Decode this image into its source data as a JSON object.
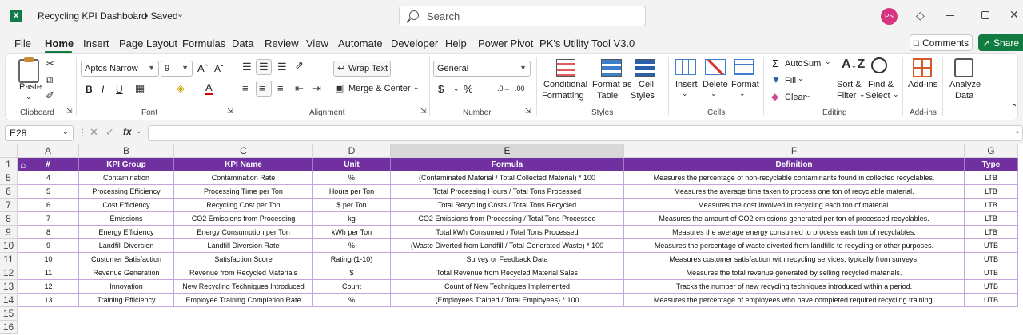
{
  "title_bar": {
    "app_icon": "X",
    "doc_title": "Recycling KPI Dashboard",
    "saved_status": "• Saved",
    "search_placeholder": "Search",
    "avatar_initials": "PS"
  },
  "menu": {
    "items": [
      "File",
      "Home",
      "Insert",
      "Page Layout",
      "Formulas",
      "Data",
      "Review",
      "View",
      "Automate",
      "Developer",
      "Help",
      "Power Pivot",
      "PK's Utility Tool V3.0"
    ],
    "active": "Home",
    "comments_label": "Comments",
    "share_label": "Share"
  },
  "ribbon": {
    "clipboard": {
      "paste": "Paste",
      "label": "Clipboard"
    },
    "font": {
      "name": "Aptos Narrow",
      "size": "9",
      "label": "Font"
    },
    "alignment": {
      "wrap": "Wrap Text",
      "merge": "Merge & Center",
      "label": "Alignment"
    },
    "number": {
      "format": "General",
      "label": "Number"
    },
    "styles": {
      "conditional": "Conditional",
      "formatting": "Formatting",
      "format_as": "Format as",
      "table": "Table",
      "cell": "Cell",
      "styles": "Styles",
      "label": "Styles"
    },
    "cells": {
      "insert": "Insert",
      "delete": "Delete",
      "format": "Format",
      "label": "Cells"
    },
    "editing": {
      "autosum": "AutoSum",
      "fill": "Fill",
      "clear": "Clear",
      "sort": "Sort &",
      "filter": "Filter",
      "find": "Find &",
      "select": "Select",
      "label": "Editing"
    },
    "addins": {
      "addins": "Add-ins",
      "label": "Add-ins"
    },
    "analyze": {
      "line1": "Analyze",
      "line2": "Data"
    }
  },
  "formula_bar": {
    "cell_ref": "E28",
    "fx": "fx"
  },
  "sheet": {
    "columns": [
      "A",
      "B",
      "C",
      "D",
      "E",
      "F",
      "G"
    ],
    "header_row_num": "1",
    "headers": [
      "#",
      "KPI Group",
      "KPI Name",
      "Unit",
      "Formula",
      "Definition",
      "Type"
    ],
    "rows": [
      {
        "r": "5",
        "c": [
          "4",
          "Contamination",
          "Contamination Rate",
          "%",
          "(Contaminated Material / Total Collected Material) * 100",
          "Measures the percentage of non-recyclable contaminants found in collected recyclables.",
          "LTB"
        ]
      },
      {
        "r": "6",
        "c": [
          "5",
          "Processing Efficiency",
          "Processing Time per Ton",
          "Hours per Ton",
          "Total Processing Hours / Total Tons Processed",
          "Measures the average time taken to process one ton of recyclable material.",
          "LTB"
        ]
      },
      {
        "r": "7",
        "c": [
          "6",
          "Cost Efficiency",
          "Recycling Cost per Ton",
          "$ per Ton",
          "Total Recycling Costs / Total Tons Recycled",
          "Measures the cost involved in recycling each ton of material.",
          "LTB"
        ]
      },
      {
        "r": "8",
        "c": [
          "7",
          "Emissions",
          "CO2 Emissions from Processing",
          "kg",
          "CO2 Emissions from Processing / Total Tons Processed",
          "Measures the amount of CO2 emissions generated per ton of processed recyclables.",
          "LTB"
        ]
      },
      {
        "r": "9",
        "c": [
          "8",
          "Energy Efficiency",
          "Energy Consumption per Ton",
          "kWh per Ton",
          "Total kWh Consumed / Total Tons Processed",
          "Measures the average energy consumed to process each ton of recyclables.",
          "LTB"
        ]
      },
      {
        "r": "10",
        "c": [
          "9",
          "Landfill Diversion",
          "Landfill Diversion Rate",
          "%",
          "(Waste Diverted from Landfill / Total Generated Waste) * 100",
          "Measures the percentage of waste diverted from landfills to recycling or other purposes.",
          "UTB"
        ]
      },
      {
        "r": "11",
        "c": [
          "10",
          "Customer Satisfaction",
          "Satisfaction Score",
          "Rating (1-10)",
          "Survey or Feedback Data",
          "Measures customer satisfaction with recycling services, typically from surveys.",
          "UTB"
        ]
      },
      {
        "r": "12",
        "c": [
          "11",
          "Revenue Generation",
          "Revenue from Recycled Materials",
          "$",
          "Total Revenue from Recycled Material Sales",
          "Measures the total revenue generated by selling recycled materials.",
          "UTB"
        ]
      },
      {
        "r": "13",
        "c": [
          "12",
          "Innovation",
          "New Recycling Techniques Introduced",
          "Count",
          "Count of New Techniques Implemented",
          "Tracks the number of new recycling techniques introduced within a period.",
          "UTB"
        ]
      },
      {
        "r": "14",
        "c": [
          "13",
          "Training Efficiency",
          "Employee Training Completion Rate",
          "%",
          "(Employees Trained / Total Employees) * 100",
          "Measures the percentage of employees who have completed required recycling training.",
          "UTB"
        ]
      }
    ],
    "extra_rows": [
      "15",
      "16"
    ],
    "header_color": "#7030a0"
  }
}
